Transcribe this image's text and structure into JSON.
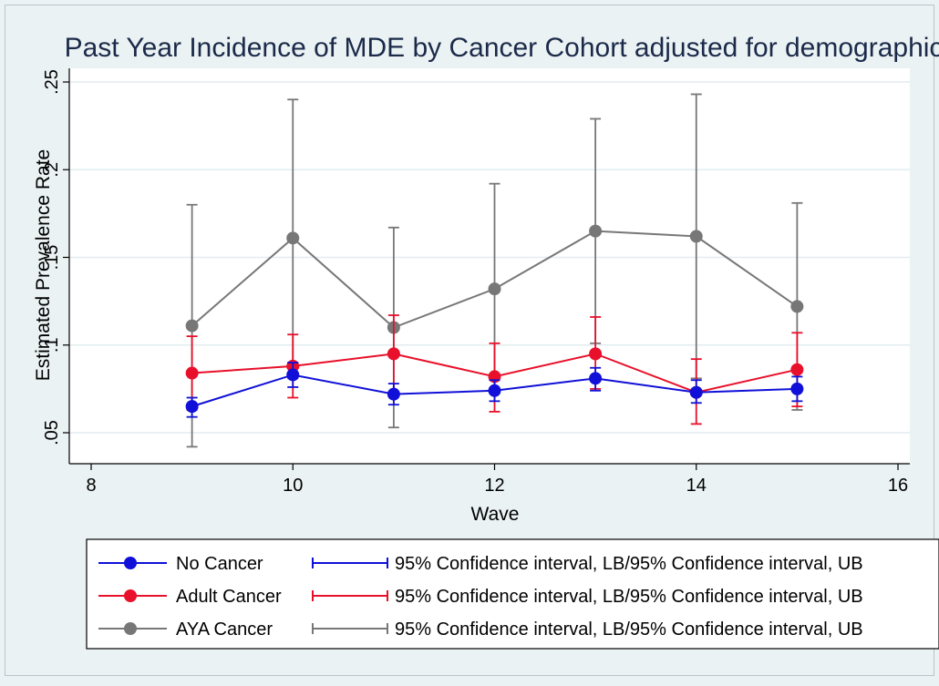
{
  "chart_data": {
    "type": "line",
    "title": "Past Year Incidence of MDE by Cancer Cohort adjusted for demographics",
    "xlabel": "Wave",
    "ylabel": "Estimated Prevalence Rate",
    "xlim": [
      8,
      16
    ],
    "ylim": [
      0.035,
      0.26
    ],
    "x_ticks": [
      8,
      10,
      12,
      14,
      16
    ],
    "y_ticks": [
      0.05,
      0.1,
      0.15,
      0.2,
      0.25
    ],
    "y_tick_labels": [
      ".05",
      ".1",
      ".15",
      ".2",
      ".25"
    ],
    "grid": true,
    "legend_position": "bottom",
    "x": [
      9,
      10,
      11,
      12,
      13,
      14,
      15
    ],
    "series": [
      {
        "name": "No Cancer",
        "ci_name": "95% Confidence interval, LB/95% Confidence interval, UB",
        "color": "#1010d8",
        "values": [
          0.065,
          0.083,
          0.072,
          0.074,
          0.081,
          0.073,
          0.075
        ],
        "lb": [
          0.059,
          0.076,
          0.066,
          0.068,
          0.074,
          0.067,
          0.068
        ],
        "ub": [
          0.07,
          0.09,
          0.078,
          0.08,
          0.087,
          0.08,
          0.082
        ]
      },
      {
        "name": "Adult Cancer",
        "ci_name": "95% Confidence interval, LB/95% Confidence interval, UB",
        "color": "#e8102a",
        "values": [
          0.084,
          0.088,
          0.095,
          0.082,
          0.095,
          0.073,
          0.086
        ],
        "lb": [
          0.063,
          0.07,
          0.073,
          0.062,
          0.075,
          0.055,
          0.065
        ],
        "ub": [
          0.105,
          0.106,
          0.117,
          0.101,
          0.116,
          0.092,
          0.107
        ]
      },
      {
        "name": "AYA Cancer",
        "ci_name": "95% Confidence interval, LB/95% Confidence interval, UB",
        "color": "#777777",
        "values": [
          0.111,
          0.161,
          0.11,
          0.132,
          0.165,
          0.162,
          0.122
        ],
        "lb": [
          0.042,
          0.081,
          0.053,
          0.073,
          0.101,
          0.081,
          0.063
        ],
        "ub": [
          0.18,
          0.24,
          0.167,
          0.192,
          0.229,
          0.243,
          0.181
        ]
      }
    ]
  }
}
